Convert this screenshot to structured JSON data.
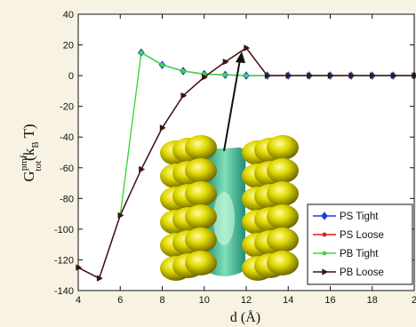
{
  "chart_data": {
    "type": "line",
    "xlabel": "d (Å)",
    "ylabel": {
      "base": "G",
      "sup": "pmf",
      "sub": "tot",
      "tail": "(k",
      "unit_sub": "B",
      "unit_tail": " T)"
    },
    "xlim": [
      4,
      20
    ],
    "ylim": [
      -140,
      40
    ],
    "xticks": [
      "4",
      "6",
      "8",
      "10",
      "12",
      "14",
      "16",
      "18",
      "2"
    ],
    "yticks": [
      "40",
      "20",
      "0",
      "-20",
      "-40",
      "-60",
      "-80",
      "-100",
      "-120",
      "-140"
    ],
    "grid": false,
    "legend_position": "bottom-right",
    "series": [
      {
        "name": "PS Tight",
        "color": "#1f3fd6",
        "marker": "diamond",
        "x": [
          7,
          8,
          9,
          10,
          11,
          12,
          13,
          14,
          15,
          16,
          17,
          18,
          19,
          20
        ],
        "y": [
          15,
          7,
          3,
          1,
          0.5,
          0,
          0,
          0,
          0,
          0,
          0,
          0,
          0,
          0
        ]
      },
      {
        "name": "PS Loose",
        "color": "#d81e1e",
        "marker": "dot",
        "x": [
          4,
          5,
          6,
          7,
          8,
          9,
          10,
          11,
          12,
          13,
          14,
          15,
          16,
          17,
          18,
          19,
          20
        ],
        "y": [
          -125,
          -132,
          -91,
          -61,
          -34,
          -13,
          -1,
          9,
          18,
          0,
          0,
          0,
          0,
          0,
          0,
          0,
          0
        ]
      },
      {
        "name": "PB Tight",
        "color": "#3ed83e",
        "marker": "dot",
        "x": [
          6,
          7,
          8,
          9,
          10,
          11,
          12,
          13,
          14,
          15,
          16,
          17,
          18,
          19,
          20
        ],
        "y": [
          -91,
          15,
          7,
          3,
          1,
          0.5,
          0,
          0,
          0,
          0,
          0,
          0,
          0,
          0,
          0
        ]
      },
      {
        "name": "PB Loose",
        "color": "#3a1414",
        "marker": "triangle-right",
        "x": [
          4,
          5,
          6,
          7,
          8,
          9,
          10,
          11,
          12,
          13,
          14,
          15,
          16,
          17,
          18,
          19,
          20
        ],
        "y": [
          -125,
          -132,
          -91,
          -61,
          -34,
          -13,
          -1,
          9,
          18,
          0,
          0,
          0,
          0,
          0,
          0,
          0,
          0
        ]
      }
    ],
    "annotation": {
      "type": "arrow",
      "to": [
        12,
        17
      ]
    }
  }
}
